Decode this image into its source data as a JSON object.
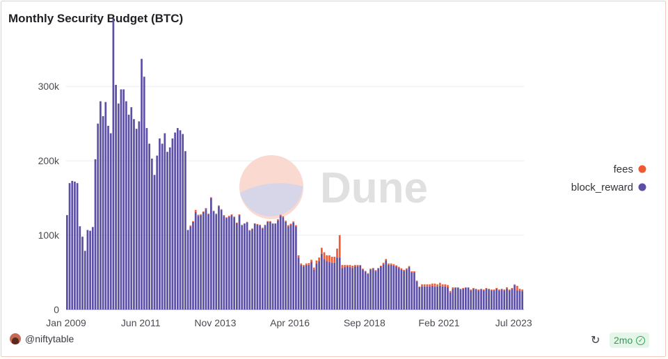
{
  "title": "Monthly Security Budget (BTC)",
  "watermark": "Dune",
  "footer": {
    "author": "@niftytable",
    "freshness": "2mo"
  },
  "colors": {
    "fees": "#f05a33",
    "block_reward": "#5b4ea6"
  },
  "chart_data": {
    "type": "bar",
    "stacked": true,
    "title": "Monthly Security Budget (BTC)",
    "xlabel": "",
    "ylabel": "",
    "ylim": [
      0,
      360000
    ],
    "yticks": [
      {
        "value": 0,
        "label": "0"
      },
      {
        "value": 100000,
        "label": "100k"
      },
      {
        "value": 200000,
        "label": "200k"
      },
      {
        "value": 300000,
        "label": "300k"
      }
    ],
    "xticks": [
      "Jan 2009",
      "Jun 2011",
      "Nov 2013",
      "Apr 2016",
      "Sep 2018",
      "Feb 2021",
      "Jul 2023"
    ],
    "legend": {
      "position": "right",
      "entries": [
        "fees",
        "block_reward"
      ]
    },
    "x_start": "2009-01",
    "frequency": "monthly",
    "series": [
      {
        "name": "block_reward",
        "values": [
          127000,
          170000,
          173000,
          172000,
          170000,
          112000,
          98000,
          79000,
          107000,
          106000,
          111000,
          202000,
          250000,
          280000,
          260000,
          279000,
          247000,
          237000,
          390000,
          302000,
          277000,
          296000,
          296000,
          280000,
          262000,
          272000,
          256000,
          243000,
          253000,
          337000,
          313000,
          244000,
          223000,
          203000,
          181000,
          207000,
          230000,
          223000,
          237000,
          212000,
          218000,
          230000,
          238000,
          244000,
          241000,
          236000,
          213000,
          107000,
          112000,
          118000,
          131000,
          126000,
          127000,
          131000,
          135000,
          128000,
          150000,
          132000,
          128000,
          139000,
          134000,
          126000,
          123000,
          125000,
          127000,
          124000,
          116000,
          127000,
          113000,
          115000,
          117000,
          106000,
          108000,
          115000,
          114000,
          113000,
          109000,
          113000,
          118000,
          118000,
          115000,
          115000,
          120000,
          126000,
          124000,
          118000,
          112000,
          114000,
          117000,
          112000,
          70000,
          60000,
          58000,
          60000,
          60000,
          64000,
          54000,
          62000,
          65000,
          75000,
          68000,
          65000,
          64000,
          63000,
          63000,
          70000,
          70000,
          56000,
          57000,
          58000,
          57000,
          56000,
          58000,
          58000,
          59000,
          54000,
          51000,
          48000,
          54000,
          55000,
          52000,
          55000,
          58000,
          61000,
          66000,
          60000,
          60000,
          59000,
          58000,
          56000,
          54000,
          52000,
          54000,
          57000,
          50000,
          50000,
          38000,
          30000,
          31000,
          31000,
          31000,
          31000,
          32000,
          31000,
          31000,
          32000,
          31000,
          31000,
          30000,
          23000,
          28000,
          29000,
          29000,
          27000,
          28000,
          29000,
          29000,
          26000,
          28000,
          27000,
          26000,
          27000,
          26000,
          28000,
          27000,
          26000,
          26000,
          28000,
          26000,
          27000,
          26000,
          28000,
          26000,
          28000,
          33000,
          26000,
          26000,
          25000
        ]
      },
      {
        "name": "fees",
        "values": [
          0,
          0,
          0,
          0,
          0,
          0,
          0,
          0,
          0,
          0,
          0,
          0,
          0,
          0,
          0,
          0,
          0,
          0,
          0,
          0,
          0,
          0,
          0,
          0,
          0,
          0,
          0,
          0,
          0,
          0,
          0,
          0,
          0,
          0,
          0,
          0,
          0,
          0,
          0,
          0,
          0,
          0,
          0,
          0,
          0,
          0,
          0,
          0,
          1000,
          1000,
          3000,
          1500,
          1000,
          1000,
          1500,
          1000,
          1000,
          1000,
          1000,
          1000,
          1000,
          1000,
          1000,
          1000,
          1000,
          1000,
          1000,
          1000,
          1000,
          1000,
          1000,
          1000,
          1000,
          1000,
          1000,
          1000,
          1000,
          1000,
          1000,
          1000,
          1000,
          1000,
          1500,
          1500,
          1500,
          1500,
          1500,
          1500,
          1500,
          1500,
          3000,
          2000,
          2000,
          2000,
          2500,
          3000,
          2500,
          4000,
          5000,
          8000,
          9000,
          8000,
          9000,
          8000,
          8000,
          12000,
          30000,
          4000,
          3000,
          2000,
          3000,
          3000,
          2000,
          2000,
          1000,
          1000,
          1000,
          1000,
          1000,
          1000,
          1000,
          1000,
          1000,
          2000,
          2000,
          2000,
          2000,
          2000,
          1500,
          1500,
          1500,
          1500,
          1500,
          1500,
          1500,
          1500,
          1000,
          1000,
          3000,
          3000,
          3000,
          3000,
          3000,
          4000,
          3000,
          4000,
          3000,
          3000,
          3000,
          2000,
          2000,
          1000,
          1000,
          1000,
          1000,
          1000,
          1000,
          1000,
          1000,
          1000,
          1000,
          1000,
          1000,
          1000,
          1000,
          1000,
          1000,
          1000,
          1000,
          1000,
          1000,
          2000,
          1000,
          1000,
          1000,
          6000,
          2000,
          2000,
          1000
        ]
      }
    ]
  }
}
